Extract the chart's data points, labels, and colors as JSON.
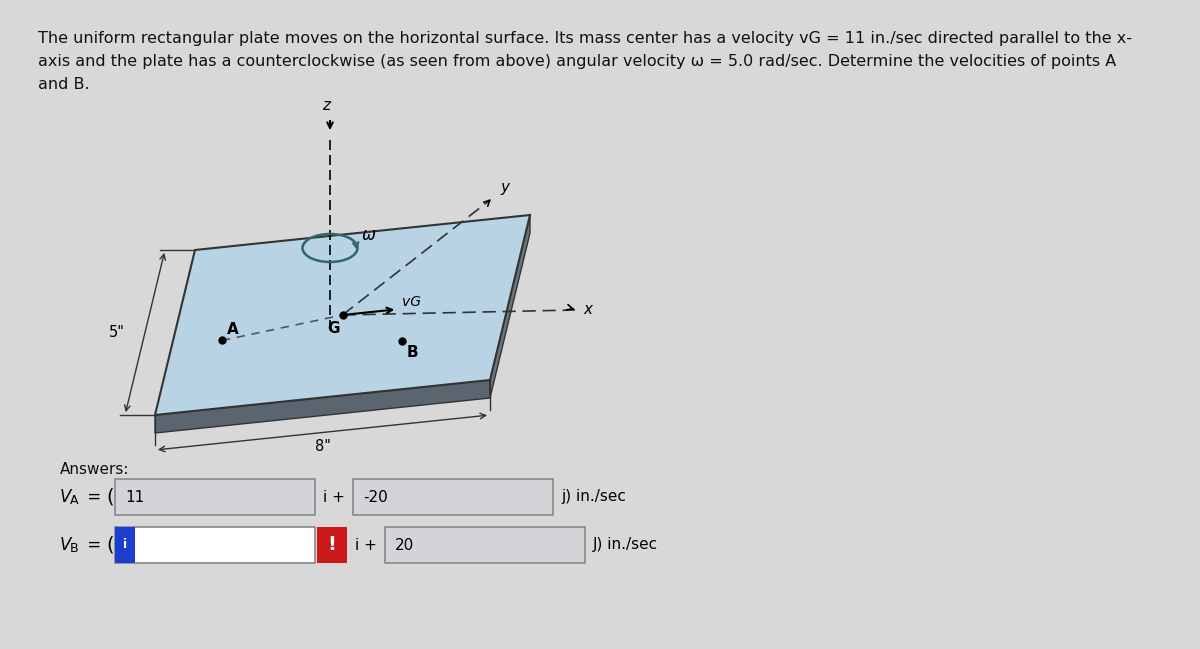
{
  "bg_color": "#c8c8c8",
  "text_bg": "#e8e8e8",
  "text_color": "#111111",
  "problem_text_line1": "The uniform rectangular plate moves on the horizontal surface. Its mass center has a velocity vG = 11 in./sec directed parallel to the x-",
  "problem_text_line2": "axis and the plate has a counterclockwise (as seen from above) angular velocity ω = 5.0 rad/sec. Determine the velocities of points A",
  "problem_text_line3": "and B.",
  "answers_label": "Answers:",
  "va_box1_value": "11",
  "va_box2_value": "-20",
  "vb_box2_value": "20",
  "box_facecolor": "#d4d4d8",
  "box_edgecolor": "#888888",
  "vb_box1_facecolor": "#e0e0e4",
  "blue_strip_color": "#1a3fcc",
  "red_strip_color": "#cc1a1a",
  "plate_top_color": "#b8d4e4",
  "plate_side_color": "#5a6570",
  "plate_edge_color": "#333333",
  "omega_circle_color": "#336666",
  "dashed_line_color": "#555555",
  "dim_line_color": "#333333",
  "axis_line_color": "#333333"
}
